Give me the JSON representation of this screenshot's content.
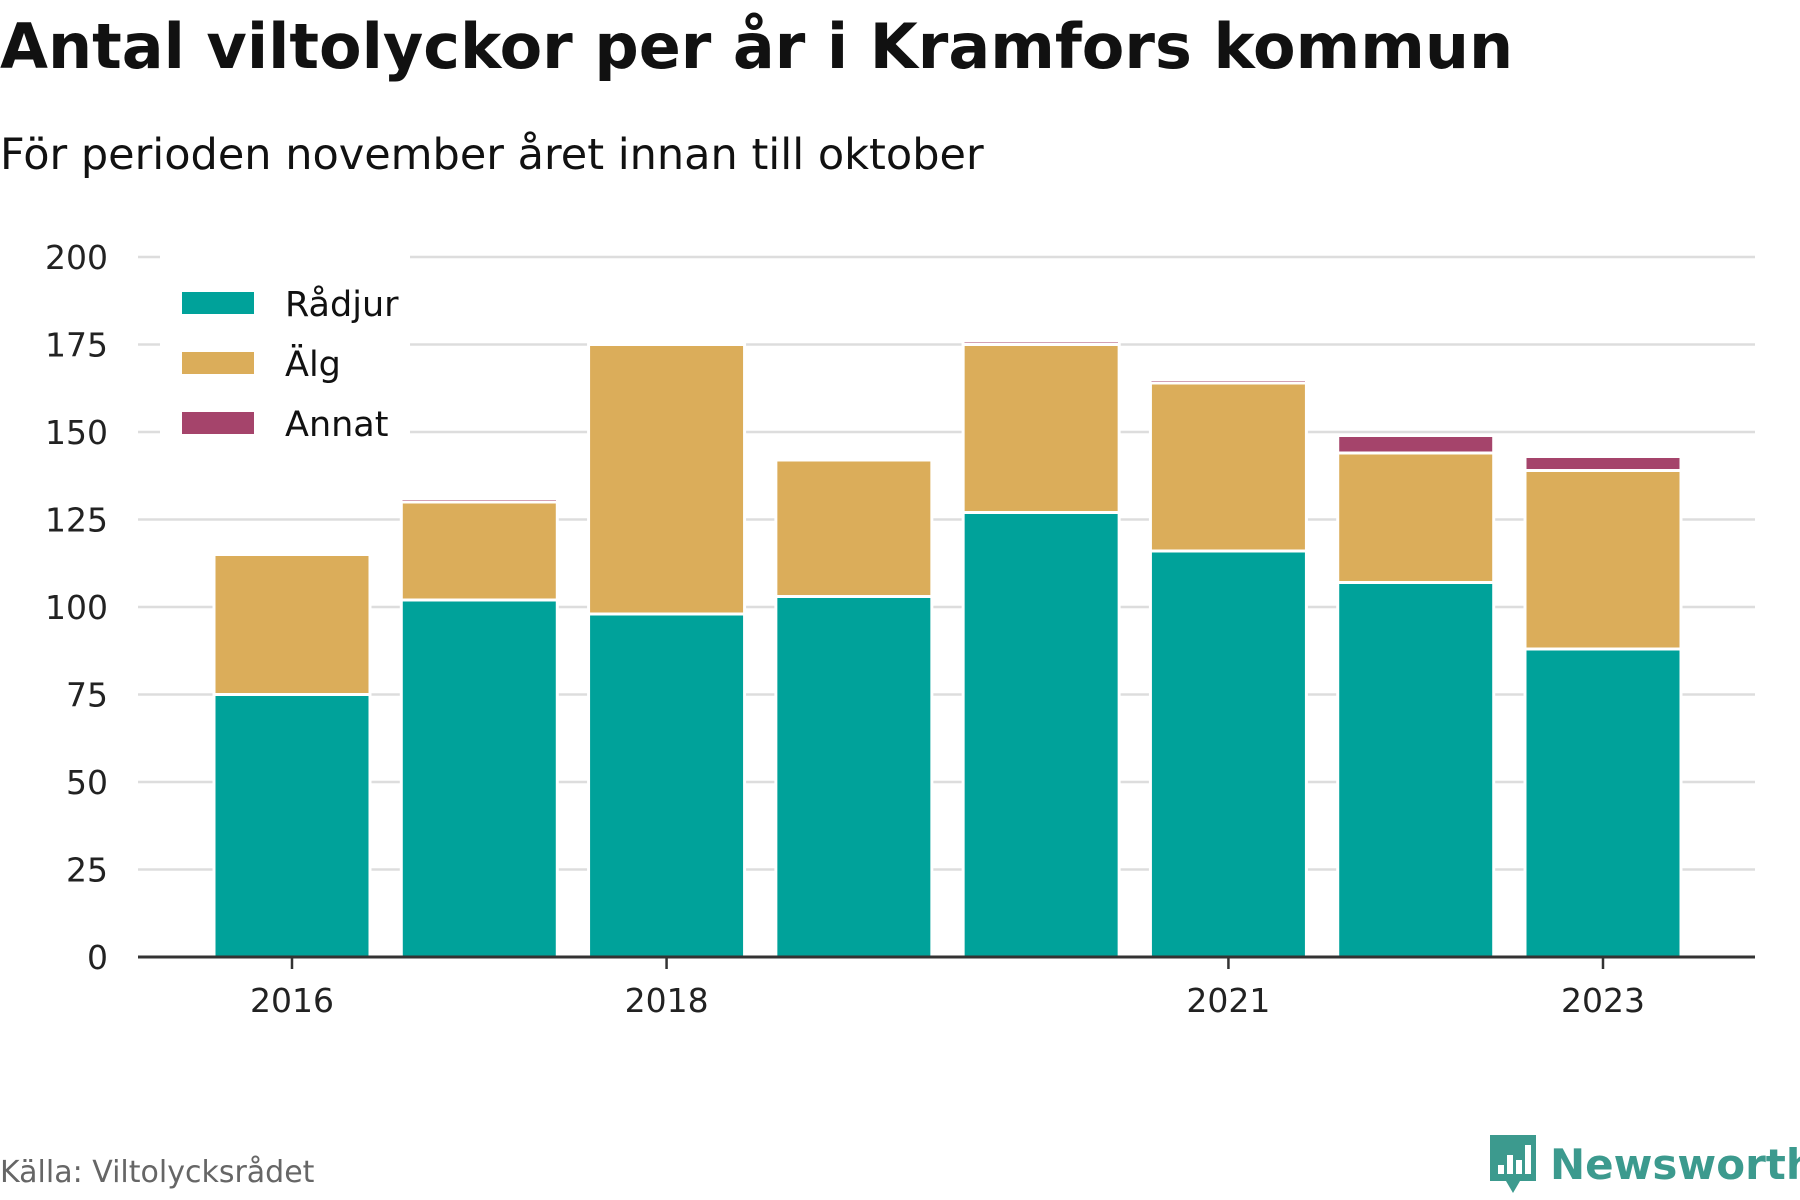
{
  "header": {
    "title": "Antal viltolyckor per år i Kramfors kommun",
    "subtitle": "För perioden november året innan till oktober"
  },
  "footer": {
    "source": "Källa: Viltolycksrådet",
    "brand": "Newsworthy"
  },
  "colors": {
    "radjur": "#00a29a",
    "alg": "#dbad5a",
    "annat": "#a5446b",
    "grid": "#dddddd",
    "axis": "#333333",
    "brand": "#3c9a8e"
  },
  "chart_data": {
    "type": "bar",
    "stacked": true,
    "title": "Antal viltolyckor per år i Kramfors kommun",
    "subtitle": "För perioden november året innan till oktober",
    "categories": [
      "2016",
      "2017",
      "2018",
      "2019",
      "2020",
      "2021",
      "2022",
      "2023"
    ],
    "x_tick_labels": [
      "2016",
      "",
      "2018",
      "",
      "",
      "2021",
      "",
      "2023"
    ],
    "series": [
      {
        "name": "Rådjur",
        "color": "#00a29a",
        "values": [
          75,
          102,
          98,
          103,
          127,
          116,
          107,
          88
        ]
      },
      {
        "name": "Älg",
        "color": "#dbad5a",
        "values": [
          40,
          28,
          77,
          39,
          48,
          48,
          37,
          51
        ]
      },
      {
        "name": "Annat",
        "color": "#a5446b",
        "values": [
          0,
          1,
          0,
          0,
          1,
          1,
          5,
          4
        ]
      }
    ],
    "ylim": [
      0,
      200
    ],
    "yticks": [
      0,
      25,
      50,
      75,
      100,
      125,
      150,
      175,
      200
    ],
    "grid": true,
    "legend": "top-left",
    "xlabel": "",
    "ylabel": ""
  }
}
